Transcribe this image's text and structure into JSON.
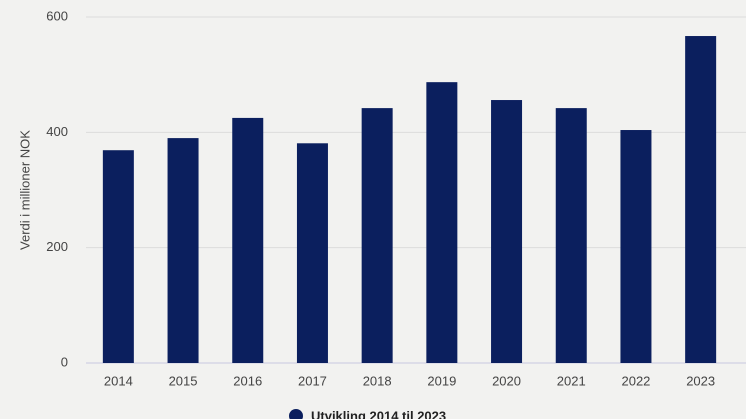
{
  "chart_data": {
    "type": "bar",
    "y_label": "Verdi i millioner NOK",
    "categories": [
      "2014",
      "2015",
      "2016",
      "2017",
      "2018",
      "2019",
      "2020",
      "2021",
      "2022",
      "2023"
    ],
    "series": [
      {
        "name": "Utvikling 2014 til 2023",
        "color": "#0b1f5e",
        "values": [
          369,
          390,
          425,
          381,
          442,
          487,
          456,
          442,
          404,
          567
        ]
      }
    ],
    "ylim": [
      0,
      600
    ],
    "yticks": [
      0,
      200,
      400,
      600
    ],
    "grid": true,
    "legend": "bottom"
  }
}
